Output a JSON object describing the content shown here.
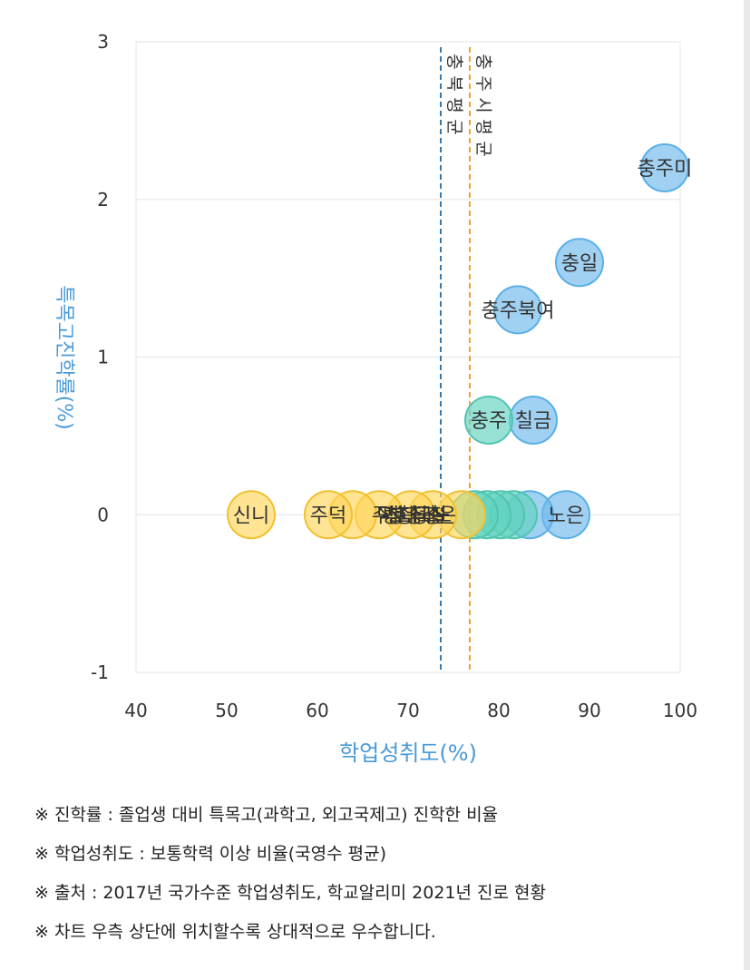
{
  "chart_data": {
    "type": "scatter",
    "xlabel": "학업성취도(%)",
    "ylabel": "특목고진학률(%)",
    "xlim": [
      40,
      100
    ],
    "ylim": [
      -1,
      3
    ],
    "x_ticks": [
      "40",
      "50",
      "60",
      "70",
      "80",
      "90",
      "100"
    ],
    "y_ticks": [
      "-1",
      "0",
      "1",
      "2",
      "3"
    ],
    "grid": true,
    "reference_lines": [
      {
        "x": 73.6,
        "color": "#3c78a8",
        "label": "충북 평균"
      },
      {
        "x": 76.8,
        "color": "#f0a030",
        "label": "충주시 평균"
      }
    ],
    "points": [
      {
        "label": "충주미",
        "x": 98.3,
        "y": 2.2,
        "group": "blue"
      },
      {
        "label": "충일",
        "x": 88.9,
        "y": 1.6,
        "group": "blue"
      },
      {
        "label": "충주북여",
        "x": 82.1,
        "y": 1.3,
        "group": "blue"
      },
      {
        "label": "칠금",
        "x": 83.8,
        "y": 0.6,
        "group": "blue"
      },
      {
        "label": "충주",
        "x": 78.9,
        "y": 0.6,
        "group": "teal"
      },
      {
        "label": "노은",
        "x": 87.4,
        "y": 0.0,
        "group": "blue"
      },
      {
        "label": "",
        "x": 83.4,
        "y": 0.0,
        "group": "blue"
      },
      {
        "label": "",
        "x": 81.6,
        "y": 0.0,
        "group": "teal"
      },
      {
        "label": "",
        "x": 80.2,
        "y": 0.0,
        "group": "teal"
      },
      {
        "label": "",
        "x": 78.7,
        "y": 0.0,
        "group": "teal"
      },
      {
        "label": "",
        "x": 77.3,
        "y": 0.0,
        "group": "teal"
      },
      {
        "label": "",
        "x": 75.9,
        "y": 0.0,
        "group": "yellow"
      },
      {
        "label": "",
        "x": 72.7,
        "y": 0.0,
        "group": "yellow"
      },
      {
        "label": "",
        "x": 70.3,
        "y": 0.0,
        "group": "yellow"
      },
      {
        "label": "",
        "x": 66.8,
        "y": 0.0,
        "group": "yellow"
      },
      {
        "label": "",
        "x": 63.9,
        "y": 0.0,
        "group": "yellow"
      },
      {
        "label": "주덕",
        "x": 61.2,
        "y": 0.0,
        "group": "yellow"
      },
      {
        "label": "신니",
        "x": 52.7,
        "y": 0.0,
        "group": "yellow"
      }
    ],
    "overlap_label_text": "주 덕 평 청 호 충 대 충 정 국 교 충 칠 노 은"
  },
  "colors": {
    "blue_fill": "rgba(110,185,235,0.65)",
    "blue_stroke": "#5ab0e6",
    "teal_fill": "rgba(95,210,190,0.65)",
    "teal_stroke": "#52c4b0",
    "yellow_fill": "rgba(255,214,90,0.65)",
    "yellow_stroke": "#f2c030",
    "axis_title": "#4a9ad8",
    "grid": "#e6e6e6"
  },
  "notes": [
    "※ 진학률 : 졸업생 대비 특목고(과학고, 외고국제고) 진학한 비율",
    "※ 학업성취도 : 보통학력 이상 비율(국영수 평균)",
    "※ 출처 : 2017년 국가수준 학업성취도, 학교알리미 2021년 진로 현황",
    "※ 차트 우측 상단에 위치할수록 상대적으로 우수합니다."
  ]
}
